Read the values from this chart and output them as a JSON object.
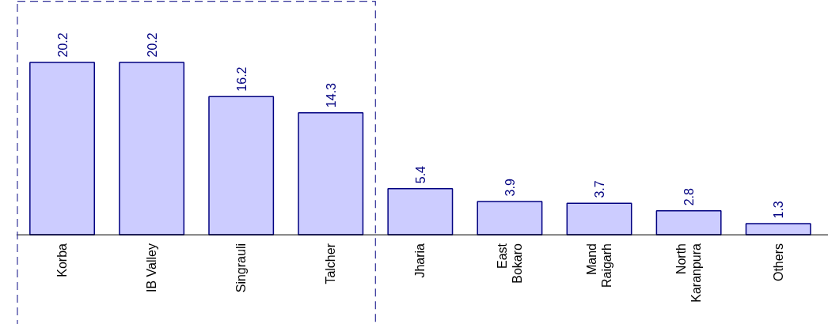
{
  "chart_data": {
    "type": "bar",
    "categories": [
      "Korba",
      "IB Valley",
      "Singrauli",
      "Talcher",
      "Jharia",
      "East\nBokaro",
      "Mand\nRaigarh",
      "North\nKaranpura",
      "Others"
    ],
    "values": [
      20.2,
      20.2,
      16.2,
      14.3,
      5.4,
      3.9,
      3.7,
      2.8,
      1.3
    ],
    "color": "#ccccff",
    "data_labels": true
  }
}
